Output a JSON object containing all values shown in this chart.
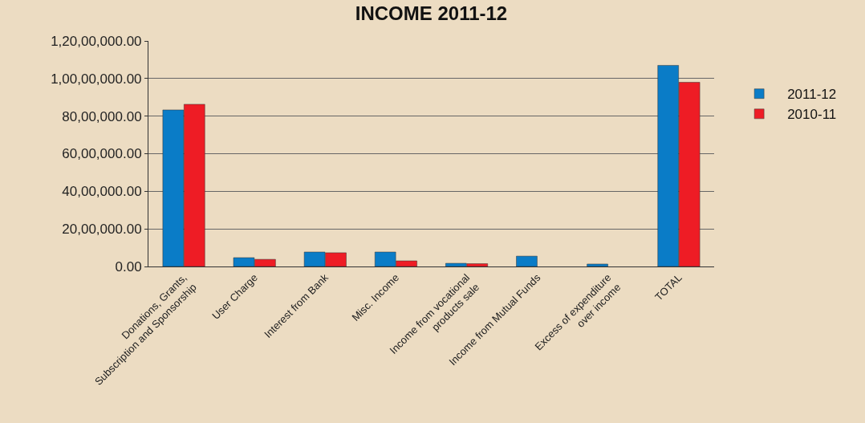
{
  "chart_data": {
    "type": "bar",
    "title": "INCOME 2011-12",
    "categories": [
      "Donations, Grants,\nSubscription and Sponsorship",
      "User Charge",
      "Interest from Bank",
      "Misc. Income",
      "Income from vocational\nproducts sale",
      "Income from Mutual Funds",
      "Excess of expenditure\nover income",
      "TOTAL"
    ],
    "series": [
      {
        "name": "2011-12",
        "color": "#0a7cc7",
        "values": [
          8330000,
          470000,
          770000,
          770000,
          170000,
          550000,
          130000,
          10700000
        ]
      },
      {
        "name": "2010-11",
        "color": "#ee1c25",
        "values": [
          8630000,
          380000,
          730000,
          300000,
          150000,
          null,
          null,
          9800000
        ]
      }
    ],
    "ylim": [
      0,
      12000000
    ],
    "yticks": [
      {
        "value": 0,
        "label": "0.00"
      },
      {
        "value": 2000000,
        "label": "20,00,000.00"
      },
      {
        "value": 4000000,
        "label": "40,00,000.00"
      },
      {
        "value": 6000000,
        "label": "60,00,000.00"
      },
      {
        "value": 8000000,
        "label": "80,00,000.00"
      },
      {
        "value": 10000000,
        "label": "1,00,00,000.00"
      },
      {
        "value": 12000000,
        "label": "1,20,00,000.00"
      }
    ],
    "grid": "y",
    "legend": "right"
  }
}
